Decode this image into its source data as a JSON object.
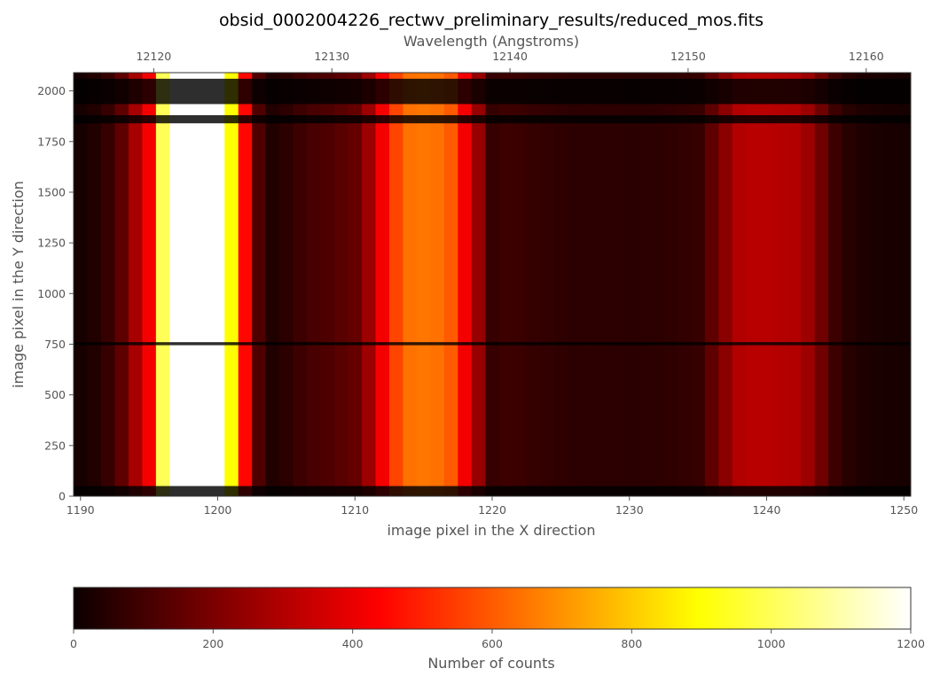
{
  "chart_data": [
    {
      "type": "heatmap",
      "title": "obsid_0002004226_rectwv_preliminary_results/reduced_mos.fits",
      "xlabel": "image pixel in the X direction",
      "ylabel": "image pixel in the Y direction",
      "x2label": "Wavelength (Angstroms)",
      "xlim": [
        1189.5,
        1250.5
      ],
      "ylim": [
        0,
        2090
      ],
      "x2lim": [
        12115.5,
        12162.5
      ],
      "x_ticks": [
        1190,
        1200,
        1210,
        1220,
        1230,
        1240,
        1250
      ],
      "y_ticks": [
        0,
        250,
        500,
        750,
        1000,
        1250,
        1500,
        1750,
        2000
      ],
      "x2_ticks": [
        12120,
        12130,
        12140,
        12150,
        12160
      ],
      "colormap": "hot",
      "grid": false,
      "column_profile": {
        "x": [
          1190,
          1191,
          1192,
          1193,
          1194,
          1195,
          1196,
          1197,
          1198,
          1199,
          1200,
          1201,
          1202,
          1203,
          1204,
          1205,
          1206,
          1207,
          1208,
          1209,
          1210,
          1211,
          1212,
          1213,
          1214,
          1215,
          1216,
          1217,
          1218,
          1219,
          1220,
          1221,
          1222,
          1223,
          1224,
          1225,
          1226,
          1227,
          1228,
          1229,
          1230,
          1231,
          1232,
          1233,
          1234,
          1235,
          1236,
          1237,
          1238,
          1239,
          1240,
          1241,
          1242,
          1243,
          1244,
          1245,
          1246,
          1247,
          1248,
          1249,
          1250
        ],
        "counts": [
          20,
          40,
          80,
          150,
          280,
          420,
          1000,
          1200,
          1200,
          1200,
          1200,
          900,
          450,
          120,
          40,
          60,
          90,
          110,
          120,
          140,
          160,
          260,
          420,
          560,
          640,
          650,
          640,
          600,
          420,
          250,
          80,
          90,
          85,
          75,
          70,
          65,
          60,
          62,
          60,
          60,
          58,
          58,
          62,
          65,
          70,
          80,
          150,
          230,
          300,
          310,
          310,
          305,
          300,
          260,
          180,
          90,
          50,
          35,
          30,
          25,
          20
        ]
      },
      "dark_bands_y": [
        0,
        50,
        745,
        760,
        1840,
        1880,
        1935,
        2060,
        2090
      ],
      "notes": []
    },
    {
      "type": "colorbar",
      "label": "Number of counts",
      "range": [
        0,
        1200
      ],
      "ticks": [
        0,
        200,
        400,
        600,
        800,
        1000,
        1200
      ],
      "colormap": "hot"
    }
  ]
}
